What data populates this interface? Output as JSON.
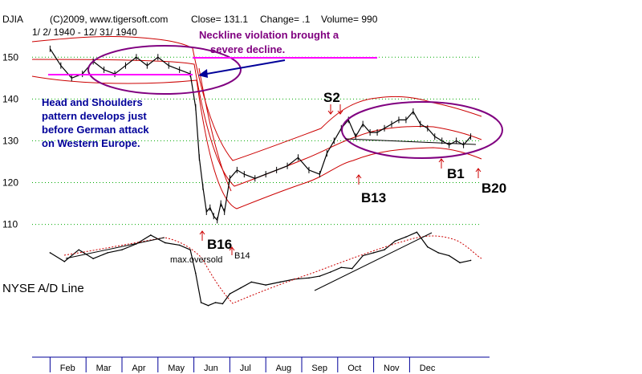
{
  "header": {
    "ticker": "DJIA",
    "source": "(C)2009, www.tigersoft.com",
    "close": "Close=  131.1",
    "change": "Change= .1",
    "volume": "Volume= 990",
    "date_range": "1/ 2/ 1940 - 12/ 31/ 1940"
  },
  "colors": {
    "price": "#000000",
    "band": "#cc0000",
    "ma": "#cc0000",
    "annotation_purple": "#800080",
    "annotation_blue": "#000099",
    "neckline": "#ff00ff",
    "signal_arrow": "#cc0000",
    "grid": "#00aa00",
    "month_tick": "#000099"
  },
  "annotations": {
    "neckline": "Neckline violation brought a severe decline.",
    "hs_line1": "Head and Shoulders",
    "hs_line2": "pattern develops just",
    "hs_line3": "before German attack",
    "hs_line4": "on Western Europe.",
    "s2": "S2",
    "b1": "B1",
    "b13": "B13",
    "b16": "B16",
    "b14": "B14",
    "b20": "B20",
    "max_oversold": "max.oversold",
    "ad_line": "NYSE A/D Line"
  },
  "chart_data": [
    {
      "type": "line",
      "series": [
        {
          "x": [
            1.0,
            1.3,
            1.6,
            1.9,
            2.2,
            2.5,
            2.8,
            3.1,
            3.4,
            3.7,
            4.0,
            4.3,
            4.6,
            4.9,
            5.05,
            5.15,
            5.25,
            5.35,
            5.45,
            5.55,
            5.65,
            5.75,
            5.85,
            6.0,
            6.2,
            6.4,
            6.7,
            7.0,
            7.3,
            7.6,
            7.9,
            8.2,
            8.5,
            8.7,
            8.9,
            9.1,
            9.3,
            9.5,
            9.7,
            9.9,
            10.1,
            10.3,
            10.5,
            10.7,
            10.9,
            11.1,
            11.3,
            11.5,
            11.7,
            11.9,
            12.1,
            12.3,
            12.5,
            12.7
          ],
          "values": [
            152,
            148,
            145,
            146,
            149,
            147,
            146,
            148,
            150,
            148,
            150,
            148,
            147,
            146,
            138,
            126,
            119,
            113,
            114,
            112,
            111,
            115,
            113,
            121,
            123,
            122,
            121,
            122,
            123,
            124,
            126,
            123,
            122,
            127,
            130,
            133,
            135,
            131,
            134,
            132,
            132,
            133,
            134,
            135,
            135,
            137,
            134,
            133,
            131,
            130,
            129,
            130,
            129,
            131
          ]
        }
      ],
      "y_ticks": [
        110,
        120,
        130,
        140,
        150
      ],
      "ylim": [
        108,
        156
      ],
      "xlim": [
        0.5,
        13
      ],
      "categories": [
        "Feb",
        "Mar",
        "Apr",
        "May",
        "Jun",
        "Jul",
        "Aug",
        "Sep",
        "Oct",
        "Nov",
        "Dec"
      ],
      "grid": "horizontal dotted"
    },
    {
      "type": "line",
      "series": [
        {
          "x": [
            1.0,
            1.4,
            1.8,
            2.2,
            2.6,
            3.0,
            3.4,
            3.8,
            4.2,
            4.6,
            4.9,
            5.05,
            5.2,
            5.4,
            5.6,
            5.8,
            6.0,
            6.3,
            6.6,
            7.0,
            7.4,
            7.8,
            8.2,
            8.5,
            8.8,
            9.1,
            9.4,
            9.7,
            10.0,
            10.3,
            10.6,
            10.9,
            11.2,
            11.5,
            11.8,
            12.1,
            12.4,
            12.7
          ],
          "values": [
            0.55,
            0.4,
            0.6,
            0.45,
            0.55,
            0.6,
            0.7,
            0.85,
            0.72,
            0.68,
            0.6,
            0.2,
            -0.3,
            -0.35,
            -0.3,
            -0.32,
            -0.15,
            -0.05,
            0.05,
            0.0,
            0.05,
            0.1,
            0.12,
            0.15,
            0.22,
            0.3,
            0.28,
            0.5,
            0.55,
            0.6,
            0.75,
            0.82,
            0.9,
            0.65,
            0.55,
            0.5,
            0.38,
            0.42
          ]
        }
      ],
      "ylim": [
        -0.45,
        1.0
      ],
      "xlim": [
        0.5,
        13
      ]
    }
  ]
}
